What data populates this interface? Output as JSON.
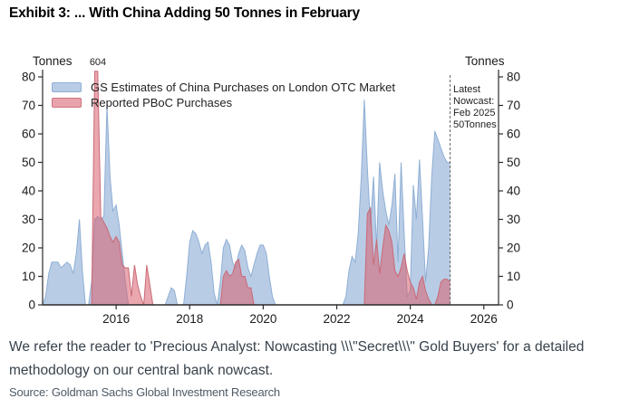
{
  "header": {
    "title": "Exhibit 3: ... With China Adding 50 Tonnes in February"
  },
  "footnote": {
    "text": "We refer the reader to 'Precious Analyst: Nowcasting \\\\\\\"Secret\\\\\\\" Gold Buyers' for a detailed methodology on our central bank nowcast."
  },
  "source": {
    "text": "Source: Goldman Sachs Global Investment Research"
  },
  "chart_data": {
    "type": "area",
    "title": "Exhibit 3: ... With China Adding 50 Tonnes in February",
    "ylabel_left": "Tonnes",
    "ylabel_right": "Tonnes",
    "ylim": [
      0,
      80
    ],
    "yticks": [
      0,
      10,
      20,
      30,
      40,
      50,
      60,
      70,
      80
    ],
    "xlim": [
      2014.0,
      2026.4
    ],
    "xticks": [
      2016,
      2018,
      2020,
      2022,
      2024,
      2026
    ],
    "grid": false,
    "legend_position": "top-left-inside",
    "x_start": 2014.0,
    "x_step_years": 0.0833333,
    "x_unit": "monthly, Jan 2014 - Feb 2025",
    "clip_display_at": 82,
    "series": [
      {
        "name": "GS Estimates of China Purchases on London OTC Market",
        "fill": "#b9cce6",
        "fill_opacity": 1,
        "edge": "#8fafd4",
        "values": [
          0,
          3,
          11,
          15,
          15,
          15,
          13,
          14,
          15,
          14,
          11,
          18,
          30,
          12,
          0,
          0,
          8,
          30,
          31,
          30,
          31,
          70,
          45,
          33,
          35,
          28,
          18,
          8,
          0,
          0,
          0,
          0,
          0,
          0,
          0,
          0,
          0,
          0,
          0,
          0,
          0,
          3,
          6,
          5,
          0,
          0,
          0,
          10,
          22,
          26,
          25,
          22,
          18,
          21,
          22,
          15,
          4,
          0,
          8,
          20,
          23,
          21,
          15,
          13,
          18,
          21,
          19,
          13,
          10,
          14,
          18,
          21,
          21,
          18,
          10,
          3,
          0,
          0,
          0,
          0,
          0,
          0,
          0,
          0,
          0,
          0,
          0,
          0,
          0,
          0,
          0,
          0,
          0,
          0,
          0,
          0,
          0,
          0,
          0,
          3,
          12,
          17,
          15,
          25,
          45,
          72,
          48,
          28,
          45,
          20,
          50,
          40,
          33,
          28,
          35,
          46,
          15,
          50,
          25,
          3,
          5,
          42,
          30,
          51,
          30,
          8,
          20,
          45,
          61,
          58,
          55,
          52,
          50,
          50
        ]
      },
      {
        "name": "Reported PBoC Purchases",
        "fill": "#d95f6e",
        "fill_opacity": 0.55,
        "edge": "#c96a76",
        "values": [
          0,
          0,
          0,
          0,
          0,
          0,
          0,
          0,
          0,
          0,
          0,
          0,
          0,
          0,
          0,
          0,
          0,
          604,
          604,
          31,
          29,
          27,
          24,
          22,
          24,
          22,
          14,
          13,
          13,
          3,
          14,
          7,
          3,
          0,
          14,
          7,
          0,
          0,
          0,
          0,
          0,
          0,
          0,
          0,
          0,
          0,
          0,
          0,
          0,
          0,
          0,
          0,
          0,
          0,
          0,
          0,
          0,
          0,
          0,
          10,
          12,
          10,
          11,
          15,
          16,
          10,
          10,
          6,
          6,
          0,
          0,
          0,
          0,
          0,
          0,
          0,
          0,
          0,
          0,
          0,
          0,
          0,
          0,
          0,
          0,
          0,
          0,
          0,
          0,
          0,
          0,
          0,
          0,
          0,
          0,
          0,
          0,
          0,
          0,
          0,
          0,
          0,
          0,
          0,
          0,
          0,
          32,
          34,
          14,
          23,
          11,
          20,
          28,
          26,
          22,
          12,
          10,
          13,
          18,
          12,
          8,
          6,
          2,
          8,
          10,
          5,
          2,
          0,
          0,
          3,
          8,
          9,
          9,
          8
        ]
      }
    ],
    "annotations": {
      "spike_label": {
        "text": "604",
        "x": 2015.54,
        "note": "red bar truncated at top of axis"
      },
      "nowcast": {
        "lines": [
          "Latest",
          "Nowcast:",
          "Feb 2025",
          "50Tonnes"
        ],
        "x": 2025.083,
        "line_style": "dashed-vertical"
      }
    },
    "colors": {
      "axis": "#2b2b2b",
      "dashed_line": "#666666",
      "overlap_appearance": "#cb8ea1"
    }
  }
}
